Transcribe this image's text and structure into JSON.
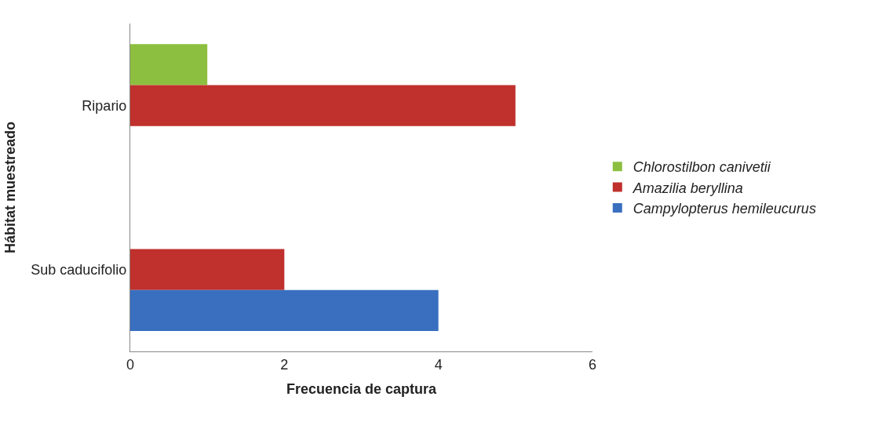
{
  "chart_data": {
    "type": "bar",
    "orientation": "horizontal",
    "xlabel": "Frecuencia de captura",
    "ylabel": "Hábitat muestreado",
    "categories": [
      "Ripario",
      "Sub caducifolio"
    ],
    "series": [
      {
        "name": "Chlorostilbon canivetii",
        "color": "#8cbf3f",
        "values": [
          1,
          null
        ]
      },
      {
        "name": "Amazilia beryllina",
        "color": "#c0302c",
        "values": [
          5,
          2
        ]
      },
      {
        "name": "Campylopterus hemileucurus",
        "color": "#3a6fbf",
        "values": [
          null,
          4
        ]
      }
    ],
    "xlim": [
      0,
      6
    ],
    "xticks": [
      0,
      2,
      4,
      6
    ],
    "legend": "right"
  }
}
